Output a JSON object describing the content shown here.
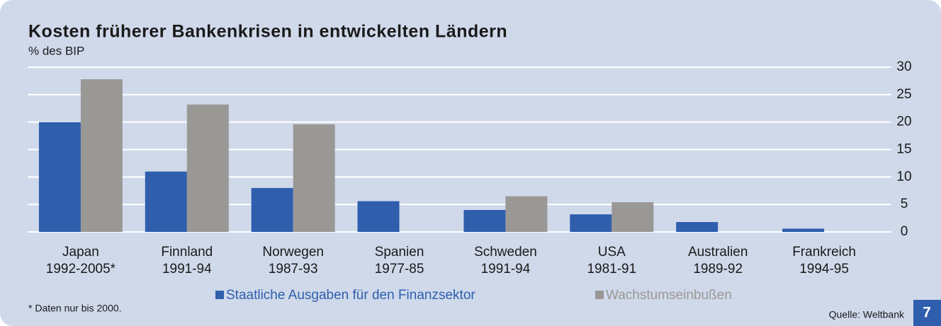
{
  "chart_data": {
    "type": "bar",
    "title": "Kosten früherer Bankenkrisen in entwickelten Ländern",
    "subtitle": "% des BIP",
    "categories": [
      [
        "Japan",
        "1992-2005*"
      ],
      [
        "Finnland",
        "1991-94"
      ],
      [
        "Norwegen",
        "1987-93"
      ],
      [
        "Spanien",
        "1977-85"
      ],
      [
        "Schweden",
        "1991-94"
      ],
      [
        "USA",
        "1981-91"
      ],
      [
        "Australien",
        "1989-92"
      ],
      [
        "Frankreich",
        "1994-95"
      ]
    ],
    "series": [
      {
        "name": "Staatliche Ausgaben für den Finanzsektor",
        "color": "#2f5ead",
        "values": [
          20,
          11,
          8,
          5.6,
          4,
          3.2,
          1.8,
          0.6
        ]
      },
      {
        "name": "Wachstumseinbußen",
        "color": "#9a9895",
        "values": [
          27.8,
          23.2,
          19.6,
          null,
          6.5,
          5.4,
          null,
          null
        ]
      }
    ],
    "ylim": [
      0,
      30
    ],
    "yticks": [
      0,
      5,
      10,
      15,
      20,
      25,
      30
    ],
    "grid": true,
    "footnote": "* Daten nur bis 2000.",
    "source": "Quelle: Weltbank",
    "page_number": "7"
  }
}
